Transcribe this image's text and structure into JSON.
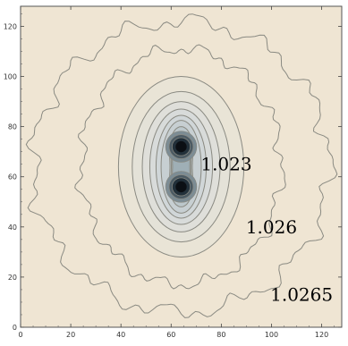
{
  "chart_data": {
    "type": "contour",
    "title": "",
    "xlabel": "",
    "ylabel": "",
    "xlim": [
      0,
      128
    ],
    "ylim": [
      0,
      128
    ],
    "x_ticks": [
      0,
      20,
      40,
      60,
      80,
      100,
      120
    ],
    "y_ticks": [
      0,
      20,
      40,
      60,
      80,
      100,
      120
    ],
    "grid": false,
    "colors": {
      "background": "#efe5d3",
      "contour_line": "#8a8a82",
      "inner_fill": "#b9c3c7",
      "core": "#0b0f14"
    },
    "sources": [
      {
        "x": 64,
        "y": 72
      },
      {
        "x": 64,
        "y": 56
      }
    ],
    "contour_labels": [
      {
        "text": "1.023",
        "x": 82,
        "y": 65
      },
      {
        "text": "1.026",
        "x": 100,
        "y": 40
      },
      {
        "text": "1.0265",
        "x": 112,
        "y": 13
      }
    ]
  }
}
